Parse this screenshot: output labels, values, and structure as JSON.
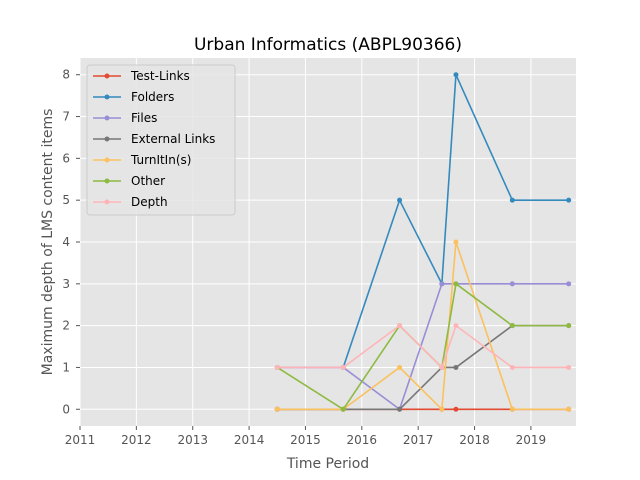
{
  "chart_data": {
    "type": "line",
    "title": "Urban Informatics (ABPL90366)",
    "xlabel": "Time Period",
    "ylabel": "Maximum depth of LMS content items",
    "xlim": [
      2011,
      2019.8
    ],
    "ylim": [
      -0.4,
      8.4
    ],
    "xticks": [
      "2011",
      "2012",
      "2013",
      "2014",
      "2015",
      "2016",
      "2017",
      "2018",
      "2019"
    ],
    "yticks": [
      "0",
      "1",
      "2",
      "3",
      "4",
      "5",
      "6",
      "7",
      "8"
    ],
    "grid": true,
    "legend_position": "top-left",
    "background_color": "#e5e5e5",
    "x": [
      2014.5,
      2015.67,
      2016.67,
      2017.42,
      2017.67,
      2018.67,
      2019.67
    ],
    "series": [
      {
        "name": "Test-Links",
        "color": "#e24a33",
        "values": [
          0,
          0,
          0,
          0,
          0,
          0,
          0
        ]
      },
      {
        "name": "Folders",
        "color": "#348abd",
        "values": [
          null,
          1,
          5,
          3,
          8,
          5,
          5
        ]
      },
      {
        "name": "Files",
        "color": "#988ed5",
        "values": [
          1,
          1,
          0,
          3,
          3,
          3,
          3
        ]
      },
      {
        "name": "External Links",
        "color": "#777777",
        "values": [
          0,
          0,
          0,
          1,
          1,
          2,
          2
        ]
      },
      {
        "name": "TurnItIn(s)",
        "color": "#fbc15e",
        "values": [
          0,
          0,
          1,
          0,
          4,
          0,
          0
        ]
      },
      {
        "name": "Other",
        "color": "#8eba42",
        "values": [
          1,
          0,
          2,
          1,
          3,
          2,
          2
        ]
      },
      {
        "name": "Depth",
        "color": "#ffb5b8",
        "values": [
          1,
          1,
          2,
          1,
          2,
          1,
          1
        ]
      }
    ]
  }
}
